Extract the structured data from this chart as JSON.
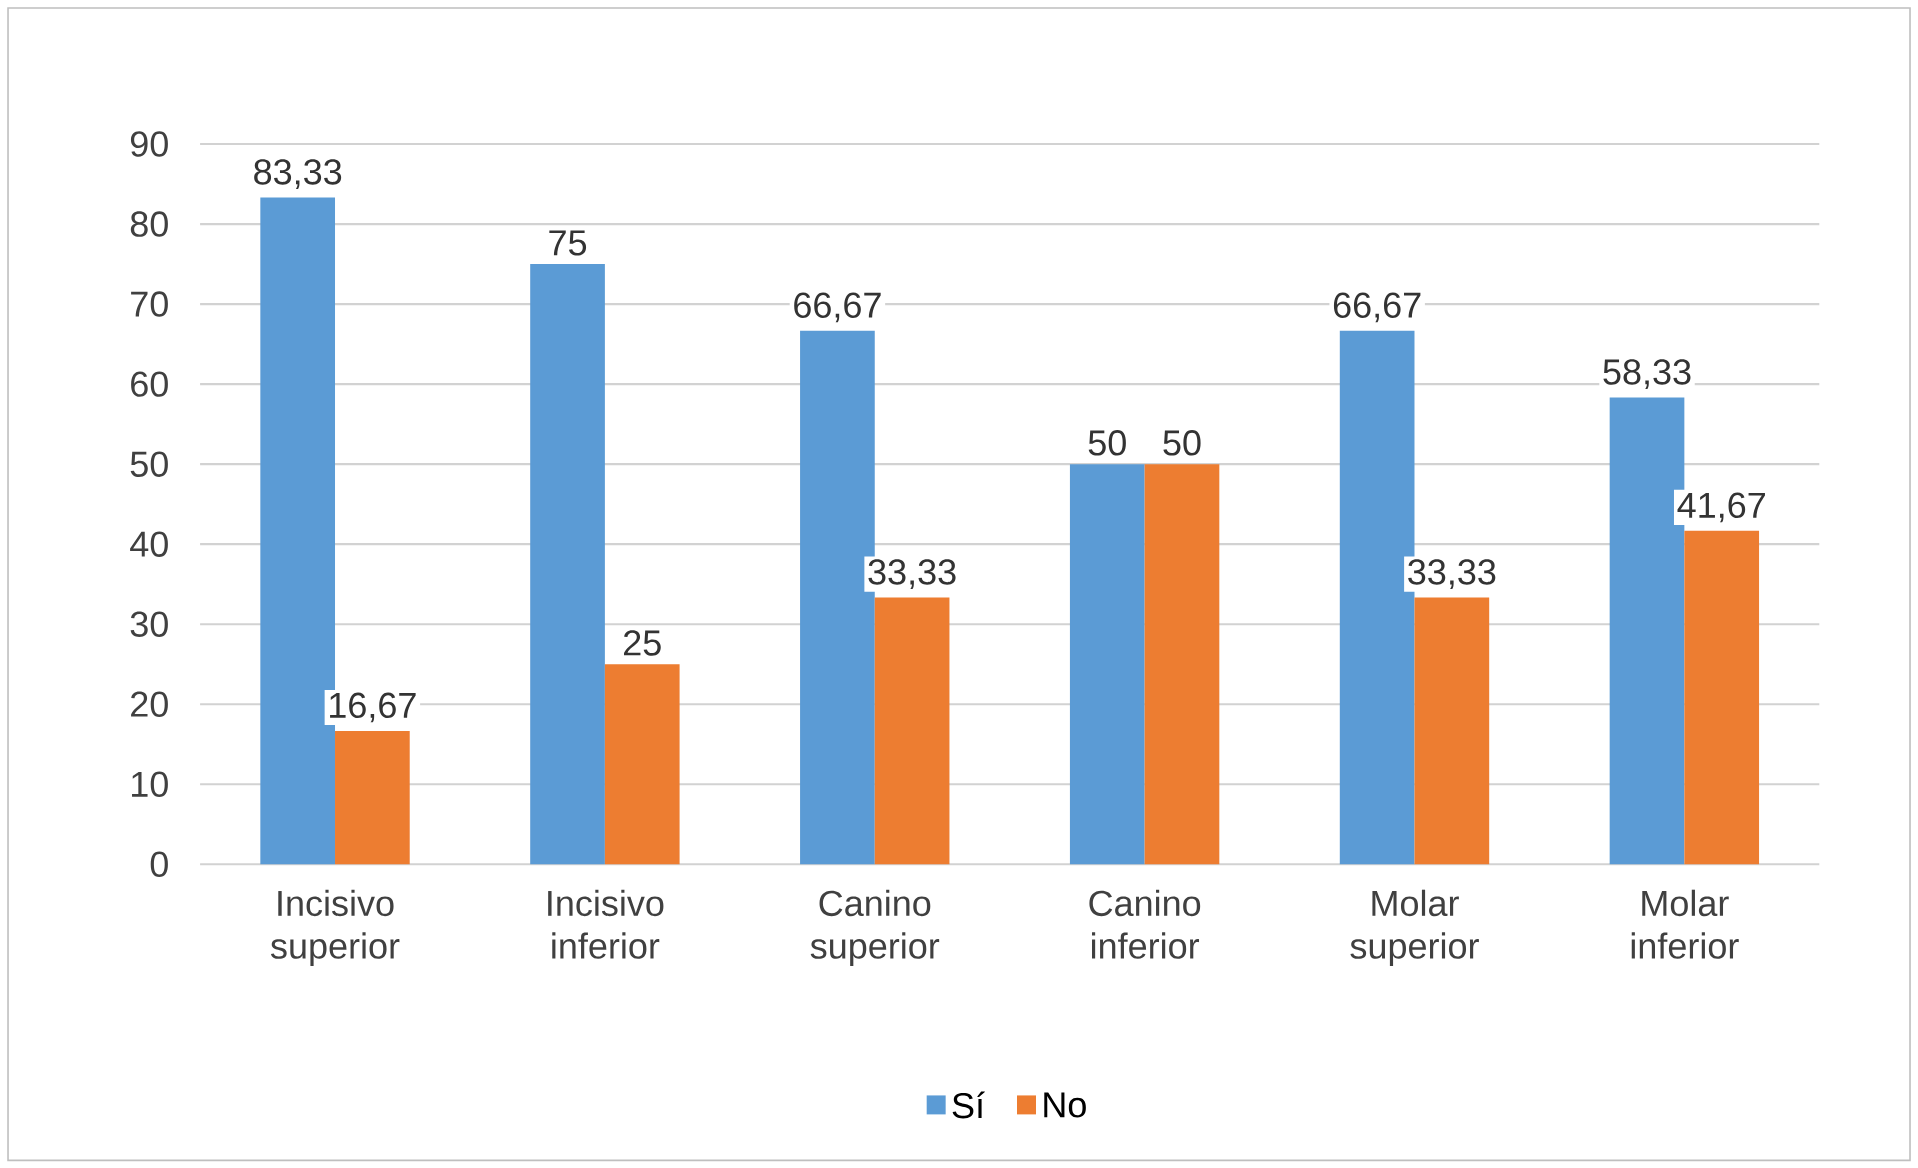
{
  "chart_data": {
    "type": "bar",
    "categories": [
      "Incisivo superior",
      "Incisivo inferior",
      "Canino superior",
      "Canino inferior",
      "Molar superior",
      "Molar inferior"
    ],
    "series": [
      {
        "name": "Sí",
        "color": "#5b9bd5",
        "values": [
          83.33,
          75,
          66.67,
          50,
          66.67,
          58.33
        ],
        "value_labels": [
          "83,33",
          "75",
          "66,67",
          "50",
          "66,67",
          "58,33"
        ]
      },
      {
        "name": "No",
        "color": "#ed7d31",
        "values": [
          16.67,
          25,
          33.33,
          50,
          33.33,
          41.67
        ],
        "value_labels": [
          "16,67",
          "25",
          "33,33",
          "50",
          "33,33",
          "41,67"
        ]
      }
    ],
    "ylim": [
      0,
      90
    ],
    "yticks": [
      0,
      10,
      20,
      30,
      40,
      50,
      60,
      70,
      80,
      90
    ],
    "grid": "y",
    "legend": "bottom"
  }
}
